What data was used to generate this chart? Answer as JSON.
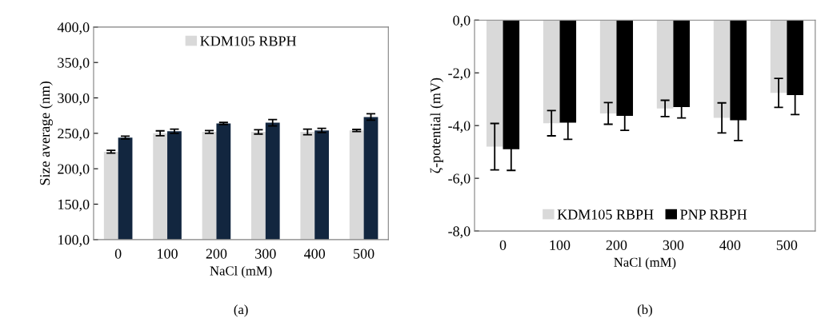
{
  "chart_data": [
    {
      "type": "bar",
      "xlabel": "NaCl (mM)",
      "ylabel": "Size average (nm)",
      "categories": [
        "0",
        "100",
        "200",
        "300",
        "400",
        "500"
      ],
      "series": [
        {
          "name": "KDM105 RBPH",
          "color": "#d9d9d9",
          "values": [
            224,
            250,
            252,
            252,
            252,
            254
          ],
          "errors": [
            2,
            3.5,
            2,
            3,
            4,
            1.5
          ]
        },
        {
          "color": "#12263f",
          "values": [
            244,
            253,
            264,
            265,
            254,
            273
          ],
          "errors": [
            2,
            3,
            1.5,
            4.5,
            3,
            4.5
          ]
        }
      ],
      "ylim": [
        100,
        400
      ],
      "yticks": [
        {
          "value": 100,
          "label": "100,0"
        },
        {
          "value": 150,
          "label": "150,0"
        },
        {
          "value": 200,
          "label": "200,0"
        },
        {
          "value": 250,
          "label": "250,0"
        },
        {
          "value": 300,
          "label": "300,0"
        },
        {
          "value": 350,
          "label": "350,0"
        },
        {
          "value": 400,
          "label": "400,0"
        }
      ],
      "legend": "top",
      "grid": false,
      "annotations": [
        "(a)"
      ]
    },
    {
      "type": "bar",
      "xlabel": "NaCl (mM)",
      "ylabel": "ζ-potential (mV)",
      "categories": [
        "0",
        "100",
        "200",
        "300",
        "400",
        "500"
      ],
      "series": [
        {
          "name": "KDM105 RBPH",
          "color": "#d9d9d9",
          "values": [
            -4.8,
            -3.91,
            -3.54,
            -3.35,
            -3.71,
            -2.76
          ],
          "errors": [
            0.88,
            0.48,
            0.41,
            0.31,
            0.57,
            0.55
          ]
        },
        {
          "name": "PNP RBPH",
          "color": "#000000",
          "values": [
            -4.9,
            -3.89,
            -3.63,
            -3.3,
            -3.8,
            -2.84
          ],
          "errors": [
            0.8,
            0.63,
            0.55,
            0.41,
            0.77,
            0.74
          ]
        }
      ],
      "ylim": [
        -8,
        0
      ],
      "yticks": [
        {
          "value": -8,
          "label": "-8,0"
        },
        {
          "value": -6,
          "label": "-6,0"
        },
        {
          "value": -4,
          "label": "-4,0"
        },
        {
          "value": -2,
          "label": "-2,0"
        },
        {
          "value": 0,
          "label": "0,0"
        }
      ],
      "legend": "bottom",
      "grid": false,
      "annotations": [
        "(b)"
      ]
    }
  ]
}
